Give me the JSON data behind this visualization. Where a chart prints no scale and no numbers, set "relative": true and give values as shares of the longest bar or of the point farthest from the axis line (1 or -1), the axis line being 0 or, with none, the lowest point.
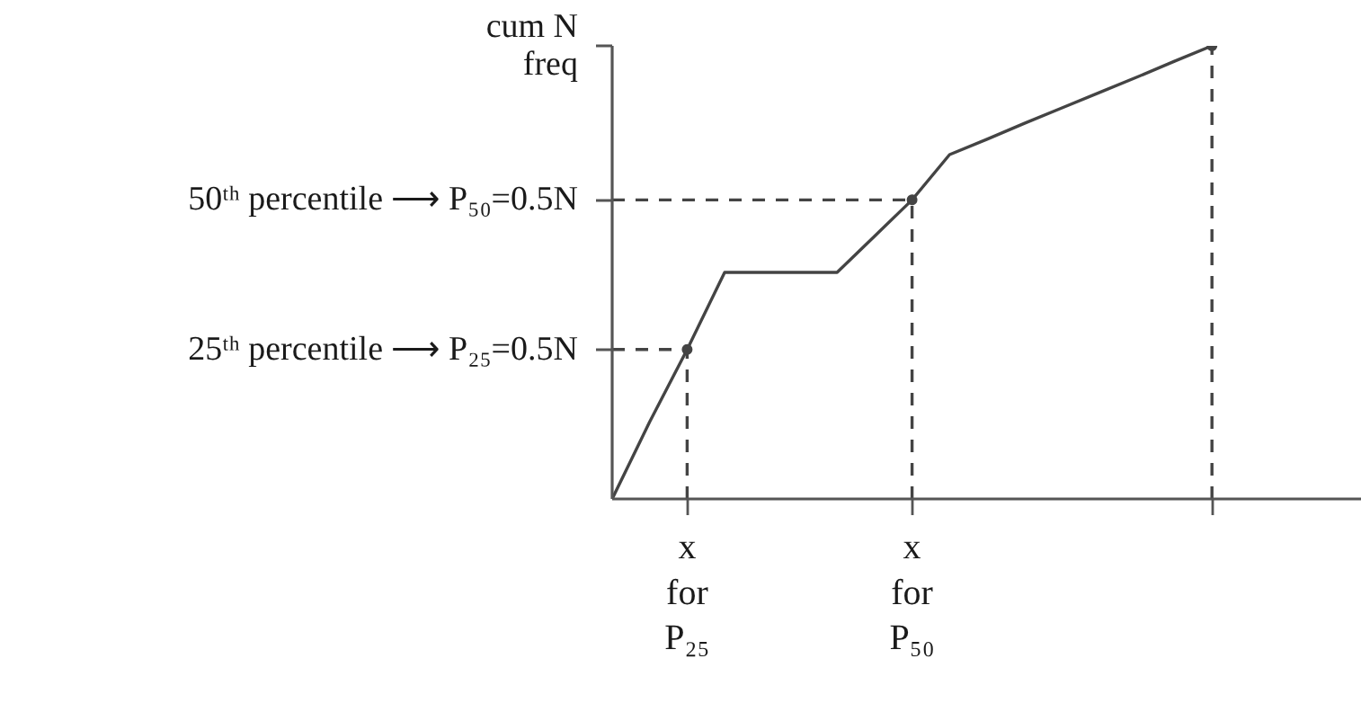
{
  "chart_data": {
    "type": "line",
    "relative": true,
    "ylabel": "cum N\nfreq",
    "categories": [
      null,
      null,
      "x\nfor\nP₂₅",
      null,
      null,
      null,
      null,
      null,
      "x\nfor\nP₅₀",
      null,
      null,
      null,
      null,
      null,
      null,
      null,
      null,
      null,
      null,
      null,
      null
    ],
    "series": [
      {
        "color": "#444444",
        "values": [
          0,
          0.17,
          0.33,
          0.5,
          0.5,
          0.5,
          0.5,
          0.58,
          0.66,
          0.76,
          0.794,
          0.829,
          0.863,
          0.897,
          0.931,
          0.966,
          1,
          null,
          null,
          null,
          null
        ]
      },
      {
        "type": "lollipop",
        "marker": "circle",
        "color": "#444444",
        "line_style": "dashed",
        "values": [
          null,
          null,
          0.33,
          null,
          null,
          null,
          null,
          null,
          0.66,
          null,
          null,
          null,
          null,
          null,
          null,
          null,
          1,
          null,
          null,
          null,
          null
        ]
      }
    ],
    "ref_lines": [
      {
        "axis": "y",
        "value": 0.66,
        "color": "#444444",
        "line_style": "dashed"
      },
      {
        "axis": "y",
        "value": 0.33,
        "color": "#444444",
        "line_style": "dashed"
      }
    ],
    "annotations": [
      "50ᵗʰ percentile ⟶ P₅₀=0.5N",
      "25ᵗʰ percentile ⟶ P₂₅=0.5N"
    ]
  }
}
